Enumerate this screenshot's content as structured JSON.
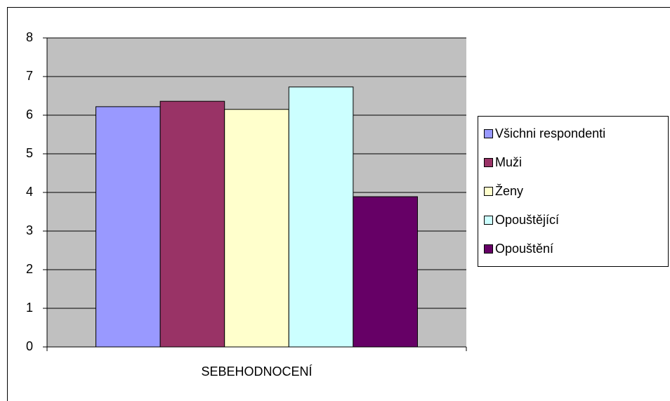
{
  "chart_data": {
    "type": "bar",
    "categories": [
      "SEBEHODNOCENÍ"
    ],
    "series": [
      {
        "name": "Všichni respondenti",
        "color": "#9999ff",
        "values": [
          6.22
        ]
      },
      {
        "name": "Muži",
        "color": "#993366",
        "values": [
          6.36
        ]
      },
      {
        "name": "Ženy",
        "color": "#ffffcc",
        "values": [
          6.15
        ]
      },
      {
        "name": "Opouštějící",
        "color": "#ccffff",
        "values": [
          6.73
        ]
      },
      {
        "name": "Opouštění",
        "color": "#660066",
        "values": [
          3.89
        ]
      }
    ],
    "ylim": [
      0,
      8
    ],
    "yticks": [
      0,
      1,
      2,
      3,
      4,
      5,
      6,
      7,
      8
    ],
    "grid": true,
    "legend": "right"
  }
}
